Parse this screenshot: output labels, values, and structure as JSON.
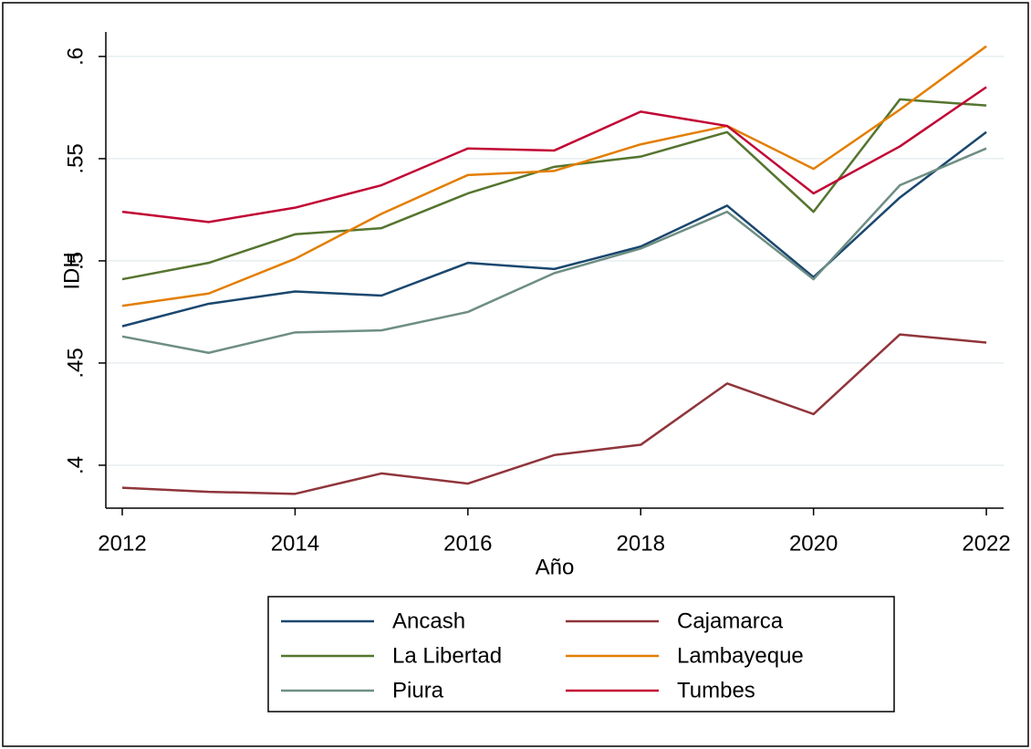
{
  "chart_data": {
    "type": "line",
    "x": [
      2012,
      2013,
      2014,
      2015,
      2016,
      2017,
      2018,
      2019,
      2020,
      2021,
      2022
    ],
    "xlabel": "Año",
    "ylabel": "IDH",
    "xlim": [
      2011.81,
      2022.2
    ],
    "xticks": [
      2012,
      2014,
      2016,
      2018,
      2020,
      2022
    ],
    "ylim": [
      0.379,
      0.612
    ],
    "yticks": [
      {
        "value": 0.4,
        "label": ".4"
      },
      {
        "value": 0.45,
        "label": ".45"
      },
      {
        "value": 0.5,
        "label": ".5"
      },
      {
        "value": 0.55,
        "label": ".55"
      },
      {
        "value": 0.6,
        "label": ".6"
      }
    ],
    "grid": true,
    "legend": "bottom",
    "series": [
      {
        "name": "Ancash",
        "color": "#1a476f",
        "values": [
          0.468,
          0.479,
          0.485,
          0.483,
          0.499,
          0.496,
          0.507,
          0.527,
          0.492,
          0.531,
          0.563
        ]
      },
      {
        "name": "Cajamarca",
        "color": "#90353b",
        "values": [
          0.389,
          0.387,
          0.386,
          0.396,
          0.391,
          0.405,
          0.41,
          0.44,
          0.425,
          0.464,
          0.46
        ]
      },
      {
        "name": "La Libertad",
        "color": "#55752f",
        "values": [
          0.491,
          0.499,
          0.513,
          0.516,
          0.533,
          0.546,
          0.551,
          0.563,
          0.524,
          0.579,
          0.576
        ]
      },
      {
        "name": "Lambayeque",
        "color": "#e37e00",
        "values": [
          0.478,
          0.484,
          0.501,
          0.523,
          0.542,
          0.544,
          0.557,
          0.566,
          0.545,
          0.574,
          0.605
        ]
      },
      {
        "name": "Piura",
        "color": "#6e8e84",
        "values": [
          0.463,
          0.455,
          0.465,
          0.466,
          0.475,
          0.494,
          0.506,
          0.524,
          0.491,
          0.537,
          0.555
        ]
      },
      {
        "name": "Tumbes",
        "color": "#c10534",
        "values": [
          0.524,
          0.519,
          0.526,
          0.537,
          0.555,
          0.554,
          0.573,
          0.566,
          0.533,
          0.556,
          0.585
        ]
      }
    ]
  }
}
